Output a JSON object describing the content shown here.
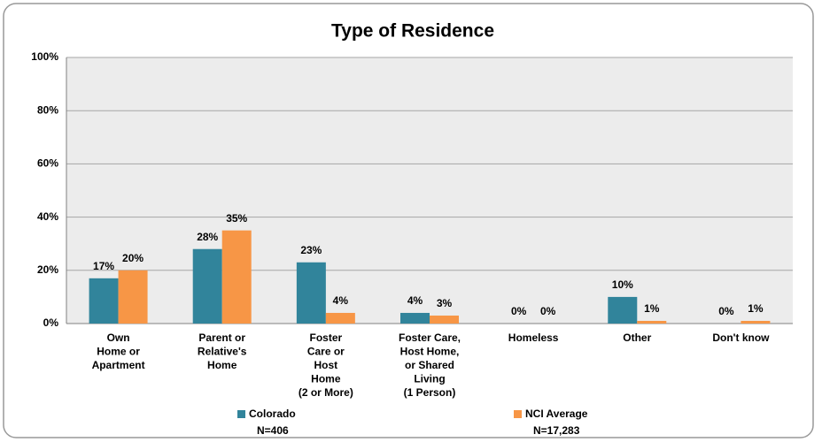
{
  "chart_data": {
    "type": "bar",
    "title": "Type of Residence",
    "categories": [
      "Own\nHome or\nApartment",
      "Parent or\nRelative's\nHome",
      "Foster\nCare or\nHost\nHome\n(2 or More)",
      "Foster Care,\nHost Home,\nor Shared\nLiving\n(1 Person)",
      "Homeless",
      "Other",
      "Don't know"
    ],
    "series": [
      {
        "name": "Colorado",
        "n_label": "N=406",
        "color": "#31849b",
        "values": [
          17,
          28,
          23,
          4,
          0,
          10,
          0
        ],
        "value_labels": [
          "17%",
          "28%",
          "23%",
          "4%",
          "0%",
          "10%",
          "0%"
        ]
      },
      {
        "name": "NCI Average",
        "n_label": "N=17,283",
        "color": "#f79646",
        "values": [
          20,
          35,
          4,
          3,
          0,
          1,
          1
        ],
        "value_labels": [
          "20%",
          "35%",
          "4%",
          "3%",
          "0%",
          "1%",
          "1%"
        ]
      }
    ],
    "ylim": [
      0,
      100
    ],
    "yticks": [
      {
        "value": 0,
        "label": "0%"
      },
      {
        "value": 20,
        "label": "20%"
      },
      {
        "value": 40,
        "label": "40%"
      },
      {
        "value": 60,
        "label": "60%"
      },
      {
        "value": 80,
        "label": "80%"
      },
      {
        "value": 100,
        "label": "100%"
      }
    ],
    "grid": true
  }
}
